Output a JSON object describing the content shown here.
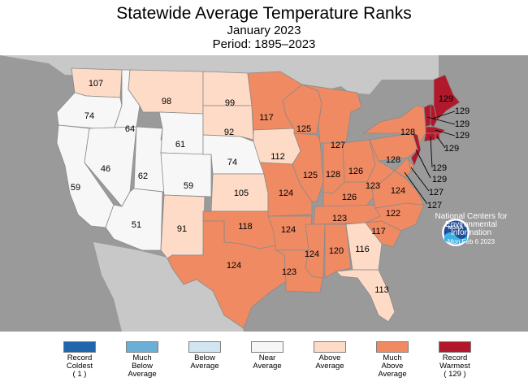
{
  "title": "Statewide Average Temperature Ranks",
  "subtitle": "January 2023",
  "period": "Period: 1895–2023",
  "colors": {
    "record_coldest": "#2166ac",
    "much_below": "#6baed6",
    "below": "#d1e5f0",
    "near": "#f7f7f7",
    "above": "#fddbc7",
    "much_above": "#ef8a62",
    "record_warmest": "#b2182b",
    "ocean": "#9a9a9a",
    "land_outside": "#c8c8c8"
  },
  "legend": [
    {
      "lines": [
        "Record",
        "Coldest",
        "( 1 )"
      ],
      "color": "#2166ac"
    },
    {
      "lines": [
        "Much",
        "Below",
        "Average"
      ],
      "color": "#6baed6"
    },
    {
      "lines": [
        "Below",
        "Average"
      ],
      "color": "#d1e5f0"
    },
    {
      "lines": [
        "Near",
        "Average"
      ],
      "color": "#f7f7f7"
    },
    {
      "lines": [
        "Above",
        "Average"
      ],
      "color": "#fddbc7"
    },
    {
      "lines": [
        "Much",
        "Above",
        "Average"
      ],
      "color": "#ef8a62"
    },
    {
      "lines": [
        "Record",
        "Warmest",
        "( 129 )"
      ],
      "color": "#b2182b"
    }
  ],
  "agency": {
    "logo_text": "NOAA",
    "lines": [
      "National Centers for",
      "Environmental",
      "Information"
    ],
    "date": "Mon Feb  6 2023"
  },
  "states": [
    {
      "code": "WA",
      "rank": "107",
      "cat": "above"
    },
    {
      "code": "OR",
      "rank": "74",
      "cat": "near"
    },
    {
      "code": "CA",
      "rank": "59",
      "cat": "near"
    },
    {
      "code": "ID",
      "rank": "64",
      "cat": "near"
    },
    {
      "code": "NV",
      "rank": "46",
      "cat": "near"
    },
    {
      "code": "AZ",
      "rank": "51",
      "cat": "near"
    },
    {
      "code": "UT",
      "rank": "62",
      "cat": "near"
    },
    {
      "code": "MT",
      "rank": "98",
      "cat": "above"
    },
    {
      "code": "WY",
      "rank": "61",
      "cat": "near"
    },
    {
      "code": "CO",
      "rank": "59",
      "cat": "near"
    },
    {
      "code": "NM",
      "rank": "91",
      "cat": "above"
    },
    {
      "code": "ND",
      "rank": "99",
      "cat": "above"
    },
    {
      "code": "SD",
      "rank": "92",
      "cat": "above"
    },
    {
      "code": "NE",
      "rank": "74",
      "cat": "near"
    },
    {
      "code": "KS",
      "rank": "105",
      "cat": "above"
    },
    {
      "code": "OK",
      "rank": "118",
      "cat": "much_above"
    },
    {
      "code": "TX",
      "rank": "124",
      "cat": "much_above"
    },
    {
      "code": "MN",
      "rank": "117",
      "cat": "much_above"
    },
    {
      "code": "IA",
      "rank": "112",
      "cat": "above"
    },
    {
      "code": "MO",
      "rank": "124",
      "cat": "much_above"
    },
    {
      "code": "AR",
      "rank": "124",
      "cat": "much_above"
    },
    {
      "code": "LA",
      "rank": "123",
      "cat": "much_above"
    },
    {
      "code": "WI",
      "rank": "125",
      "cat": "much_above"
    },
    {
      "code": "IL",
      "rank": "125",
      "cat": "much_above"
    },
    {
      "code": "MI",
      "rank": "127",
      "cat": "much_above"
    },
    {
      "code": "IN",
      "rank": "128",
      "cat": "much_above"
    },
    {
      "code": "OH",
      "rank": "126",
      "cat": "much_above"
    },
    {
      "code": "KY",
      "rank": "126",
      "cat": "much_above"
    },
    {
      "code": "TN",
      "rank": "123",
      "cat": "much_above"
    },
    {
      "code": "MS",
      "rank": "124",
      "cat": "much_above"
    },
    {
      "code": "AL",
      "rank": "120",
      "cat": "much_above"
    },
    {
      "code": "GA",
      "rank": "116",
      "cat": "above"
    },
    {
      "code": "FL",
      "rank": "113",
      "cat": "above"
    },
    {
      "code": "SC",
      "rank": "117",
      "cat": "much_above"
    },
    {
      "code": "NC",
      "rank": "122",
      "cat": "much_above"
    },
    {
      "code": "VA",
      "rank": "124",
      "cat": "much_above"
    },
    {
      "code": "WV",
      "rank": "123",
      "cat": "much_above"
    },
    {
      "code": "PA",
      "rank": "128",
      "cat": "much_above"
    },
    {
      "code": "NY",
      "rank": "128",
      "cat": "much_above"
    },
    {
      "code": "ME",
      "rank": "129",
      "cat": "record_warmest"
    },
    {
      "code": "NH",
      "rank": "129",
      "cat": "record_warmest"
    },
    {
      "code": "VT",
      "rank": "129",
      "cat": "record_warmest"
    },
    {
      "code": "MA",
      "rank": "129",
      "cat": "record_warmest"
    },
    {
      "code": "RI",
      "rank": "129",
      "cat": "record_warmest"
    },
    {
      "code": "CT",
      "rank": "129",
      "cat": "record_warmest"
    },
    {
      "code": "NJ",
      "rank": "129",
      "cat": "record_warmest"
    },
    {
      "code": "DE",
      "rank": "127",
      "cat": "much_above"
    },
    {
      "code": "MD",
      "rank": "127",
      "cat": "much_above"
    }
  ]
}
